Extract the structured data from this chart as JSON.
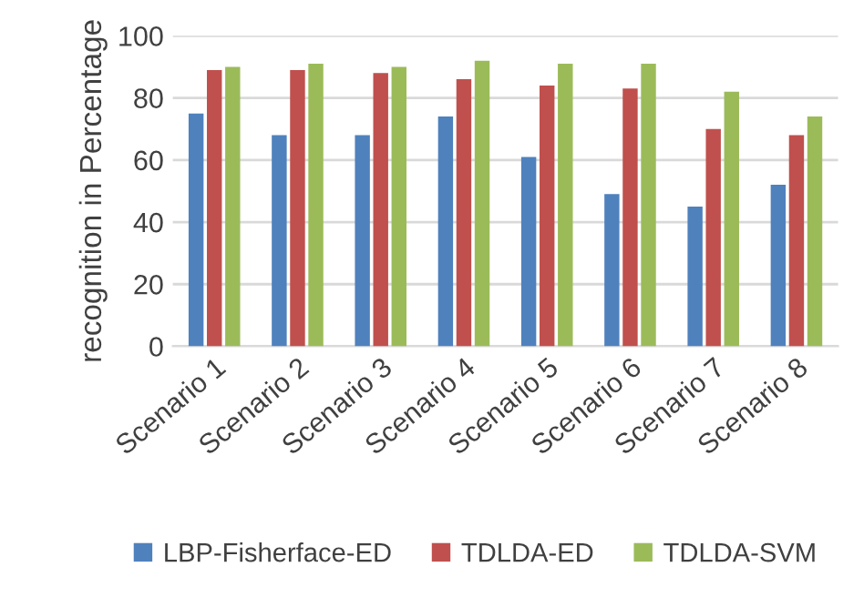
{
  "chart_data": {
    "type": "bar",
    "ylabel": "recognition in Percentage",
    "categories": [
      "Scenario 1",
      "Scenario 2",
      "Scenario 3",
      "Scenario 4",
      "Scenario 5",
      "Scenario 6",
      "Scenario 7",
      "Scenario 8"
    ],
    "series": [
      {
        "name": "LBP-Fisherface-ED",
        "color": "#4f81bd",
        "values": [
          75,
          68,
          68,
          74,
          61,
          49,
          45,
          52
        ]
      },
      {
        "name": "TDLDA-ED",
        "color": "#c0504d",
        "values": [
          89,
          89,
          88,
          86,
          84,
          83,
          70,
          68
        ]
      },
      {
        "name": "TDLDA-SVM",
        "color": "#9bbb59",
        "values": [
          90,
          91,
          90,
          92,
          91,
          91,
          82,
          74
        ]
      }
    ],
    "ylim": [
      0,
      100
    ],
    "yticks": [
      0,
      20,
      40,
      60,
      80,
      100
    ],
    "grid": "y",
    "legend": "bottom"
  }
}
